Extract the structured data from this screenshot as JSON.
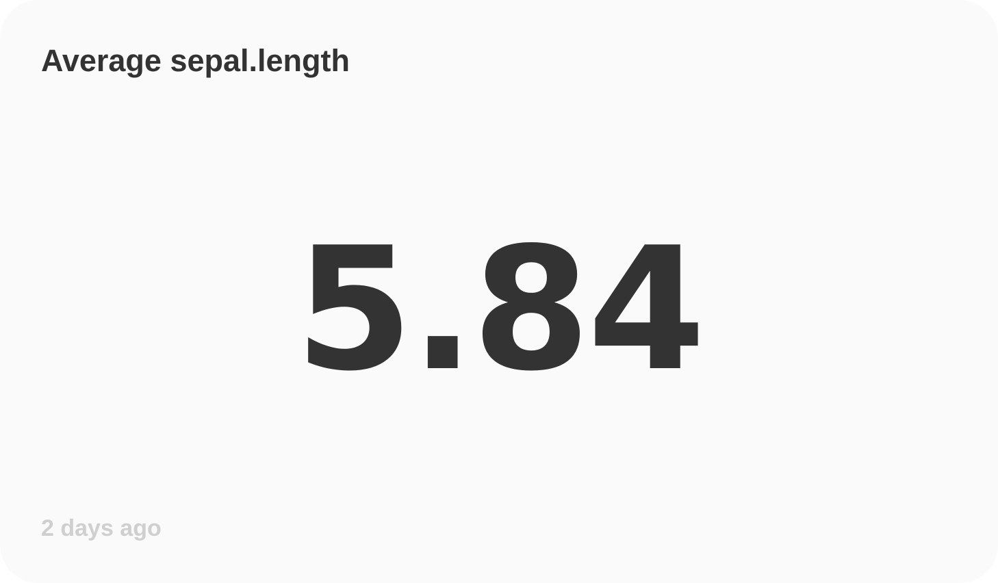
{
  "card": {
    "title": "Average sepal.length",
    "value": "5.84",
    "updated": "2 days ago"
  },
  "colors": {
    "background": "#fafafa",
    "text": "#333333",
    "muted": "#cfcfcf"
  }
}
